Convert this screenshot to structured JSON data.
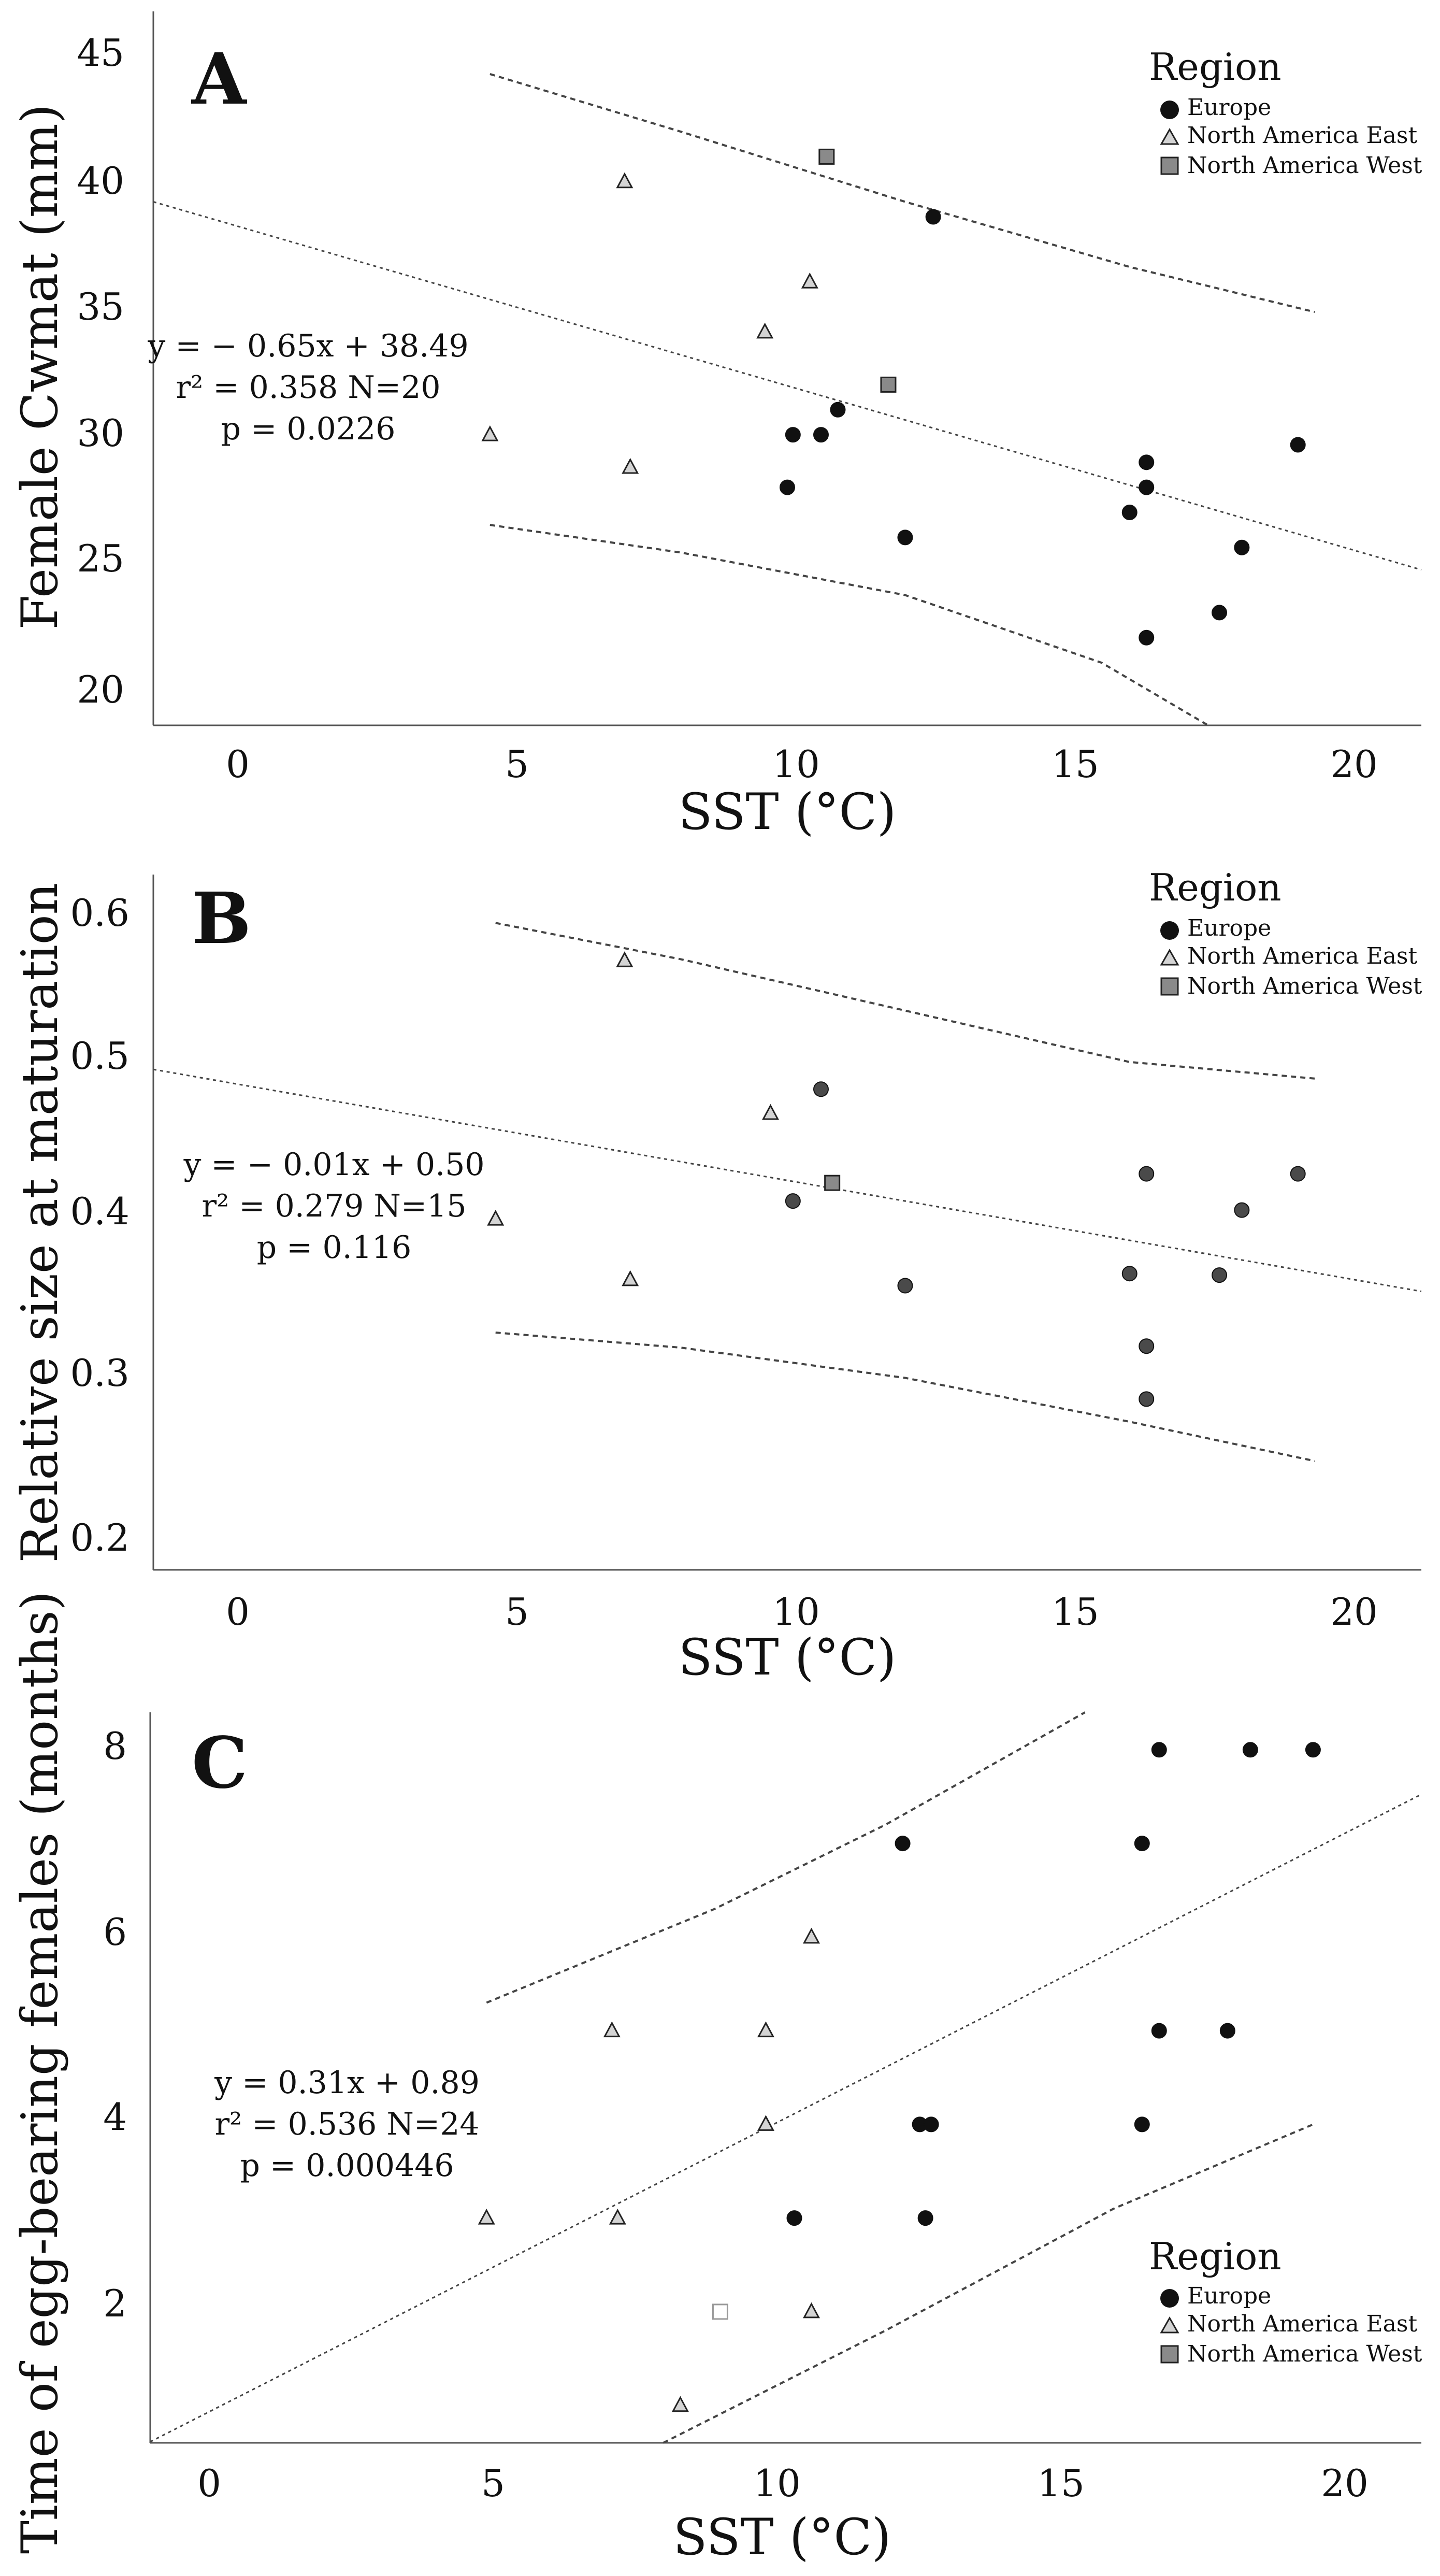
{
  "legend": {
    "title": "Region",
    "items": [
      {
        "label": "Europe",
        "marker": "circle",
        "fill": "#111111"
      },
      {
        "label": "North America East",
        "marker": "triangle",
        "fill": "#cfcfcf"
      },
      {
        "label": "North America West",
        "marker": "square",
        "fill": "#8a8a8a"
      }
    ]
  },
  "colors": {
    "europe": "#111111",
    "europe_b": "#4a4a4a",
    "nae": "#d4d4d4",
    "naw": "#8a8a8a",
    "naw_c": "#ffffff"
  },
  "chart_data": [
    {
      "type": "scatter",
      "panel_label": "A",
      "xlabel": "SST (°C)",
      "ylabel": "Female Cwmat (mm)",
      "xlim": [
        -1.4,
        21.2
      ],
      "ylim": [
        18.5,
        47
      ],
      "xticks": [
        "0",
        "5",
        "10",
        "15",
        "20"
      ],
      "yticks": [
        "20",
        "25",
        "30",
        "35",
        "40",
        "45"
      ],
      "annotation": [
        "y =  − 0.65x + 38.49",
        "r² = 0.358  N=20",
        "p = 0.0226"
      ],
      "regression": {
        "slope": -0.65,
        "intercept": 38.49,
        "x_range": [
          -1.4,
          21.2
        ]
      },
      "upper_band": [
        [
          4.6,
          44.5
        ],
        [
          8,
          42.2
        ],
        [
          12,
          39.4
        ],
        [
          16,
          36.8
        ],
        [
          19.3,
          35.0
        ]
      ],
      "lower_band": [
        [
          4.6,
          26.5
        ],
        [
          8,
          25.4
        ],
        [
          12,
          23.7
        ],
        [
          15.5,
          21.0
        ],
        [
          17.4,
          18.5
        ]
      ],
      "series": [
        {
          "name": "Europe",
          "points": [
            [
              12.5,
              38.8
            ],
            [
              10.8,
              31.1
            ],
            [
              10.0,
              30.1
            ],
            [
              10.5,
              30.1
            ],
            [
              9.9,
              28.0
            ],
            [
              12.0,
              26.0
            ],
            [
              16.0,
              27.0
            ],
            [
              16.3,
              29.0
            ],
            [
              16.3,
              28.0
            ],
            [
              19.0,
              29.7
            ],
            [
              18.0,
              25.6
            ],
            [
              17.6,
              23.0
            ],
            [
              16.3,
              22.0
            ]
          ]
        },
        {
          "name": "North America East",
          "points": [
            [
              7.0,
              40.2
            ],
            [
              10.3,
              36.2
            ],
            [
              9.5,
              34.2
            ],
            [
              4.6,
              30.1
            ],
            [
              7.1,
              28.8
            ]
          ]
        },
        {
          "name": "North America West",
          "points": [
            [
              10.6,
              41.2
            ],
            [
              11.7,
              32.1
            ]
          ]
        }
      ]
    },
    {
      "type": "scatter",
      "panel_label": "B",
      "xlabel": "SST (°C)",
      "ylabel": "Relative size at maturation",
      "xlim": [
        -1.4,
        21.2
      ],
      "ylim": [
        0.18,
        0.64
      ],
      "xticks": [
        "0",
        "5",
        "10",
        "15",
        "20"
      ],
      "yticks": [
        "0.2",
        "0.3",
        "0.4",
        "0.5",
        "0.6"
      ],
      "annotation": [
        "y =  − 0.01x + 0.50",
        "r² = 0.279  N=15",
        "p = 0.116"
      ],
      "regression": {
        "slope": -0.0065,
        "intercept": 0.502,
        "x_range": [
          -1.4,
          21.2
        ]
      },
      "upper_band": [
        [
          4.7,
          0.608
        ],
        [
          8,
          0.584
        ],
        [
          12,
          0.55
        ],
        [
          16,
          0.516
        ],
        [
          19.3,
          0.505
        ]
      ],
      "lower_band": [
        [
          4.7,
          0.337
        ],
        [
          8,
          0.327
        ],
        [
          12,
          0.307
        ],
        [
          16,
          0.278
        ],
        [
          19.3,
          0.252
        ]
      ],
      "series": [
        {
          "name": "Europe",
          "points": [
            [
              10.5,
              0.498
            ],
            [
              10.0,
              0.424
            ],
            [
              12.0,
              0.368
            ],
            [
              16.3,
              0.442
            ],
            [
              19.0,
              0.442
            ],
            [
              18.0,
              0.418
            ],
            [
              16.0,
              0.376
            ],
            [
              17.6,
              0.375
            ],
            [
              16.3,
              0.328
            ],
            [
              16.3,
              0.293
            ]
          ]
        },
        {
          "name": "North America East",
          "points": [
            [
              7.0,
              0.583
            ],
            [
              9.6,
              0.482
            ],
            [
              4.7,
              0.412
            ],
            [
              7.1,
              0.372
            ]
          ]
        },
        {
          "name": "North America West",
          "points": [
            [
              10.7,
              0.436
            ]
          ]
        }
      ]
    },
    {
      "type": "scatter",
      "panel_label": "C",
      "xlabel": "SST (°C)",
      "ylabel": "Time of egg-bearing females (months)",
      "xlim": [
        -0.9,
        21.4
      ],
      "ylim": [
        0.6,
        8.4
      ],
      "xticks": [
        "0",
        "5",
        "10",
        "15",
        "20"
      ],
      "yticks": [
        "2",
        "4",
        "6",
        "8"
      ],
      "annotation": [
        "y = 0.31x + 0.89",
        "r² = 0.536  N=24",
        "p = 0.000446"
      ],
      "regression": {
        "slope": 0.31,
        "intercept": 0.89,
        "x_range": [
          -0.9,
          21.4
        ]
      },
      "upper_band": [
        [
          5.0,
          5.3
        ],
        [
          9,
          6.3
        ],
        [
          12,
          7.2
        ],
        [
          15.5,
          8.4
        ]
      ],
      "lower_band": [
        [
          8.1,
          0.6
        ],
        [
          12,
          1.8
        ],
        [
          16,
          3.1
        ],
        [
          19.5,
          4.0
        ]
      ],
      "series": [
        {
          "name": "Europe",
          "points": [
            [
              12.3,
              7.0
            ],
            [
              16.5,
              7.0
            ],
            [
              16.8,
              8.0
            ],
            [
              18.4,
              8.0
            ],
            [
              19.5,
              8.0
            ],
            [
              16.8,
              5.0
            ],
            [
              18.0,
              5.0
            ],
            [
              12.6,
              4.0
            ],
            [
              12.8,
              4.0
            ],
            [
              16.5,
              4.0
            ],
            [
              10.4,
              3.0
            ],
            [
              12.7,
              3.0
            ]
          ]
        },
        {
          "name": "North America East",
          "points": [
            [
              10.7,
              6.0
            ],
            [
              7.2,
              5.0
            ],
            [
              9.9,
              5.0
            ],
            [
              9.9,
              4.0
            ],
            [
              5.0,
              3.0
            ],
            [
              7.3,
              3.0
            ],
            [
              10.7,
              2.0
            ],
            [
              8.4,
              1.0
            ]
          ]
        },
        {
          "name": "North America West",
          "points": [
            [
              9.1,
              2.0
            ]
          ]
        }
      ]
    }
  ]
}
